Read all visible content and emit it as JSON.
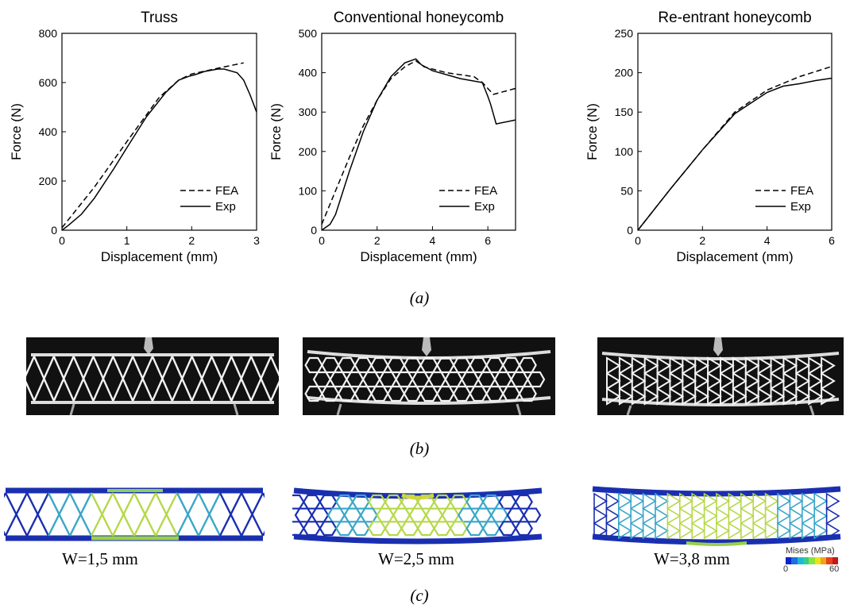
{
  "chart_data": [
    {
      "type": "line",
      "title": "Truss",
      "xlabel": "Displacement (mm)",
      "ylabel": "Force (N)",
      "xlim": [
        0,
        3
      ],
      "ylim": [
        0,
        800
      ],
      "xticks": [
        "0",
        "1",
        "2",
        "3"
      ],
      "yticks": [
        "0",
        "200",
        "400",
        "600",
        "800"
      ],
      "legend_position": "bottom-right",
      "series": [
        {
          "name": "FEA",
          "style": "dashed",
          "x": [
            0,
            0.5,
            1.0,
            1.5,
            1.8,
            2.0,
            2.4,
            2.8
          ],
          "y": [
            10,
            175,
            360,
            540,
            610,
            635,
            658,
            680
          ]
        },
        {
          "name": "Exp",
          "style": "solid",
          "x": [
            0,
            0.1,
            0.3,
            0.5,
            0.8,
            1.0,
            1.3,
            1.6,
            1.8,
            1.95,
            2.05,
            2.2,
            2.4,
            2.5,
            2.7,
            2.8,
            2.9,
            3.0
          ],
          "y": [
            0,
            20,
            65,
            130,
            250,
            335,
            460,
            560,
            610,
            625,
            632,
            645,
            655,
            655,
            640,
            610,
            550,
            480
          ]
        }
      ]
    },
    {
      "type": "line",
      "title": "Conventional honeycomb",
      "xlabel": "Displacement (mm)",
      "ylabel": "Force (N)",
      "xlim": [
        0,
        7
      ],
      "ylim": [
        0,
        500
      ],
      "xticks": [
        "0",
        "2",
        "4",
        "6"
      ],
      "yticks": [
        "0",
        "100",
        "200",
        "300",
        "400",
        "500"
      ],
      "legend_position": "bottom-right",
      "series": [
        {
          "name": "FEA",
          "style": "dashed",
          "x": [
            0,
            0.5,
            1.0,
            1.5,
            2.0,
            2.5,
            3.0,
            3.4,
            3.7,
            4.5,
            5.5,
            5.8,
            6.2,
            7.0
          ],
          "y": [
            15,
            100,
            185,
            265,
            330,
            385,
            415,
            430,
            415,
            400,
            390,
            375,
            345,
            360
          ]
        },
        {
          "name": "Exp",
          "style": "solid",
          "x": [
            0,
            0.3,
            0.5,
            1.0,
            1.5,
            2.0,
            2.5,
            3.0,
            3.4,
            3.6,
            4.0,
            5.0,
            5.8,
            6.0,
            6.1,
            6.3,
            7.0
          ],
          "y": [
            0,
            15,
            40,
            150,
            250,
            330,
            390,
            425,
            435,
            420,
            405,
            385,
            375,
            340,
            320,
            270,
            280
          ]
        }
      ]
    },
    {
      "type": "line",
      "title": "Re-entrant honeycomb",
      "xlabel": "Displacement (mm)",
      "ylabel": "Force (N)",
      "xlim": [
        0,
        6
      ],
      "ylim": [
        0,
        250
      ],
      "xticks": [
        "0",
        "2",
        "4",
        "6"
      ],
      "yticks": [
        "0",
        "50",
        "100",
        "150",
        "200",
        "250"
      ],
      "legend_position": "bottom-right",
      "series": [
        {
          "name": "FEA",
          "style": "dashed",
          "x": [
            0,
            1,
            2,
            3,
            4,
            5,
            6
          ],
          "y": [
            0,
            52,
            102,
            150,
            178,
            195,
            208
          ]
        },
        {
          "name": "Exp",
          "style": "solid",
          "x": [
            0,
            1,
            2,
            3,
            4,
            4.5,
            5,
            5.5,
            6
          ],
          "y": [
            0,
            52,
            102,
            148,
            175,
            183,
            186,
            190,
            193
          ]
        }
      ]
    }
  ],
  "captions": {
    "a": "(a)",
    "b": "(b)",
    "c": "(c)"
  },
  "fea_labels": {
    "w1": "W=1,5 mm",
    "w2": "W=2,5 mm",
    "w3": "W=3,8 mm"
  },
  "colorbar": {
    "title": "Mises (MPa)",
    "min": "0",
    "max": "60",
    "colors": [
      "#0b24c8",
      "#1e6fe0",
      "#1fb6d8",
      "#2fd08a",
      "#8ee23a",
      "#e8e41c",
      "#f5a21a",
      "#e8421c",
      "#c41818"
    ]
  },
  "colors": {
    "structure": "#ffffff",
    "fea_base": "#1a2fb0",
    "fea_mid": "#3aa6c8",
    "fea_hot": "#b6d84a"
  }
}
